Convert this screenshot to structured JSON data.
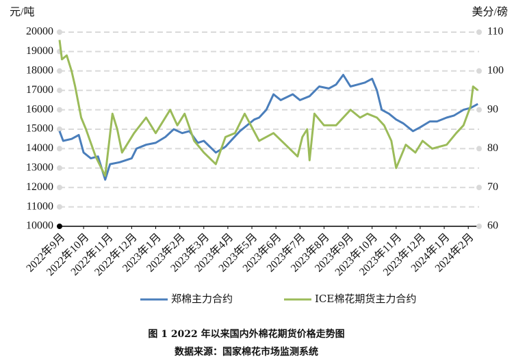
{
  "chart_data": {
    "type": "line",
    "caption": "图 1 2022 年以来国内外棉花期货价格走势图",
    "source": "数据来源：国家棉花市场监测系统",
    "ylabel": "元/吨",
    "y2label": "美分/磅",
    "xlim": [
      0,
      17.45
    ],
    "xticks": [
      {
        "value": 0,
        "label": "2022年9月"
      },
      {
        "value": 1,
        "label": "2022年10月"
      },
      {
        "value": 2,
        "label": "2022年11月"
      },
      {
        "value": 3,
        "label": "2022年12月"
      },
      {
        "value": 4,
        "label": "2023年1月"
      },
      {
        "value": 5,
        "label": "2023年2月"
      },
      {
        "value": 6,
        "label": "2023年3月"
      },
      {
        "value": 7,
        "label": "2023年4月"
      },
      {
        "value": 8,
        "label": "2023年5月"
      },
      {
        "value": 9,
        "label": "2023年6月"
      },
      {
        "value": 10,
        "label": "2023年7月"
      },
      {
        "value": 11,
        "label": "2023年8月"
      },
      {
        "value": 12,
        "label": "2023年9月"
      },
      {
        "value": 13,
        "label": "2023年10月"
      },
      {
        "value": 14,
        "label": "2023年11月"
      },
      {
        "value": 15,
        "label": "2023年12月"
      },
      {
        "value": 16,
        "label": "2024年1月"
      },
      {
        "value": 17,
        "label": "2024年2月"
      }
    ],
    "ylim": [
      10000,
      20000
    ],
    "yticks": [
      10000,
      11000,
      12000,
      13000,
      14000,
      15000,
      16000,
      17000,
      18000,
      19000,
      20000
    ],
    "y2lim": [
      60,
      110
    ],
    "y2ticks": [
      60,
      70,
      80,
      90,
      100,
      110
    ],
    "grid": true,
    "legend": "bottom",
    "series": [
      {
        "name": "郑棉主力合约",
        "color": "#4a7ebb",
        "axis": "y",
        "x": [
          0,
          0.15,
          0.5,
          0.8,
          1.0,
          1.3,
          1.6,
          1.9,
          2.1,
          2.5,
          3.0,
          3.2,
          3.6,
          4.0,
          4.4,
          4.75,
          5.1,
          5.4,
          5.75,
          6.0,
          6.5,
          6.9,
          7.2,
          7.5,
          7.8,
          8.1,
          8.3,
          8.6,
          8.9,
          9.2,
          9.7,
          10.0,
          10.4,
          10.8,
          11.2,
          11.5,
          11.8,
          12.1,
          12.4,
          12.7,
          13.0,
          13.2,
          13.4,
          13.7,
          14.0,
          14.3,
          14.7,
          15.0,
          15.4,
          15.7,
          16.1,
          16.4,
          16.8,
          17.1,
          17.4
        ],
        "values": [
          14900,
          14400,
          14500,
          14700,
          13800,
          13500,
          13600,
          12400,
          13200,
          13300,
          13500,
          14000,
          14200,
          14300,
          14600,
          15000,
          14800,
          14900,
          14300,
          14400,
          13800,
          14100,
          14500,
          14900,
          15200,
          15500,
          15600,
          16000,
          16800,
          16500,
          16800,
          16500,
          16700,
          17200,
          17100,
          17300,
          17800,
          17200,
          17300,
          17400,
          17600,
          17000,
          16000,
          15800,
          15500,
          15300,
          14900,
          15100,
          15400,
          15400,
          15600,
          15700,
          16000,
          16100,
          16300
        ]
      },
      {
        "name": "ICE棉花期货主力合约",
        "color": "#9bbb59",
        "axis": "y2",
        "x": [
          0,
          0.1,
          0.3,
          0.5,
          0.65,
          0.9,
          1.1,
          1.5,
          1.9,
          2.2,
          2.4,
          2.6,
          3.1,
          3.6,
          4.0,
          4.6,
          4.9,
          5.2,
          5.6,
          6.0,
          6.5,
          6.9,
          7.3,
          7.7,
          8.3,
          8.9,
          9.4,
          9.9,
          10.1,
          10.3,
          10.4,
          10.6,
          11.0,
          11.5,
          12.1,
          12.5,
          12.8,
          13.2,
          13.5,
          13.8,
          14.0,
          14.4,
          14.8,
          15.1,
          15.5,
          16.1,
          16.5,
          16.8,
          17.1,
          17.2,
          17.4
        ],
        "values": [
          108,
          103,
          104,
          100,
          96,
          88,
          85,
          78,
          73,
          89,
          85,
          79,
          84,
          88,
          84,
          90,
          86,
          89,
          82,
          79,
          76,
          83,
          84,
          89,
          82,
          84,
          81,
          78,
          83,
          85,
          77,
          89,
          86,
          86,
          90,
          88,
          89,
          88,
          86,
          82,
          75,
          81,
          79,
          82,
          80,
          81,
          84,
          86,
          91,
          96,
          95
        ]
      }
    ]
  }
}
